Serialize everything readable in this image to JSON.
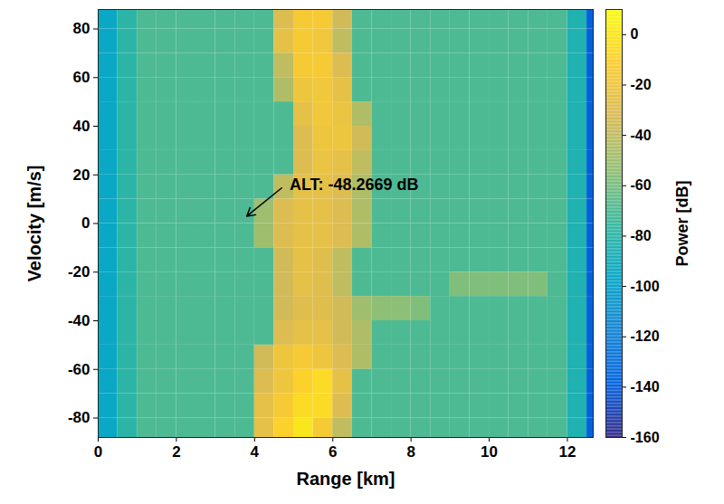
{
  "chart_data": {
    "type": "heatmap",
    "xlabel": "Range [km]",
    "ylabel": "Velocity [m/s]",
    "xlim": [
      0,
      12.66
    ],
    "ylim": [
      -88,
      88
    ],
    "xticks": [
      0,
      2,
      4,
      6,
      8,
      10,
      12
    ],
    "yticks": [
      -80,
      -60,
      -40,
      -20,
      0,
      20,
      40,
      60,
      80
    ],
    "cells": {
      "x": [
        0.25,
        0.75,
        1.25,
        1.75,
        2.25,
        2.75,
        3.25,
        3.75,
        4.25,
        4.75,
        5.25,
        5.75,
        6.25,
        6.75,
        7.25,
        7.75,
        8.25,
        8.75,
        9.25,
        9.75,
        10.25,
        10.75,
        11.25,
        11.75,
        12.25,
        12.75
      ],
      "y": [
        85,
        75,
        65,
        55,
        45,
        35,
        25,
        15,
        5,
        -5,
        -15,
        -25,
        -35,
        -45,
        -55,
        -65,
        -75,
        -85
      ],
      "values": [
        [
          -95,
          -80,
          -70,
          -70,
          -70,
          -70,
          -70,
          -70,
          -70,
          -30,
          -15,
          -15,
          -35,
          -70,
          -70,
          -70,
          -70,
          -70,
          -70,
          -70,
          -70,
          -70,
          -70,
          -70,
          -85,
          -140
        ],
        [
          -95,
          -80,
          -70,
          -70,
          -70,
          -70,
          -70,
          -70,
          -70,
          -25,
          -15,
          -18,
          -40,
          -70,
          -70,
          -70,
          -70,
          -70,
          -70,
          -70,
          -70,
          -70,
          -70,
          -70,
          -85,
          -140
        ],
        [
          -95,
          -80,
          -70,
          -70,
          -70,
          -70,
          -70,
          -70,
          -70,
          -40,
          -15,
          -15,
          -30,
          -70,
          -70,
          -70,
          -70,
          -70,
          -70,
          -70,
          -70,
          -70,
          -70,
          -70,
          -85,
          -140
        ],
        [
          -95,
          -80,
          -70,
          -70,
          -70,
          -70,
          -70,
          -70,
          -70,
          -45,
          -20,
          -18,
          -25,
          -70,
          -70,
          -70,
          -70,
          -70,
          -70,
          -70,
          -70,
          -70,
          -70,
          -70,
          -85,
          -140
        ],
        [
          -95,
          -80,
          -70,
          -70,
          -70,
          -70,
          -70,
          -70,
          -70,
          -70,
          -25,
          -18,
          -22,
          -45,
          -70,
          -70,
          -70,
          -70,
          -70,
          -70,
          -70,
          -70,
          -70,
          -70,
          -85,
          -140
        ],
        [
          -95,
          -80,
          -70,
          -70,
          -70,
          -70,
          -70,
          -70,
          -70,
          -70,
          -30,
          -20,
          -20,
          -35,
          -70,
          -70,
          -70,
          -70,
          -70,
          -70,
          -70,
          -70,
          -70,
          -70,
          -85,
          -140
        ],
        [
          -95,
          -80,
          -70,
          -70,
          -70,
          -70,
          -70,
          -70,
          -70,
          -70,
          -30,
          -22,
          -25,
          -40,
          -70,
          -70,
          -70,
          -70,
          -70,
          -70,
          -70,
          -70,
          -70,
          -70,
          -85,
          -140
        ],
        [
          -95,
          -80,
          -70,
          -70,
          -70,
          -70,
          -70,
          -70,
          -70,
          -40,
          -25,
          -25,
          -30,
          -45,
          -70,
          -70,
          -70,
          -70,
          -70,
          -70,
          -70,
          -70,
          -70,
          -70,
          -85,
          -140
        ],
        [
          -95,
          -80,
          -70,
          -70,
          -70,
          -70,
          -70,
          -70,
          -50,
          -30,
          -25,
          -25,
          -30,
          -45,
          -70,
          -70,
          -70,
          -70,
          -70,
          -70,
          -70,
          -70,
          -70,
          -70,
          -85,
          -140
        ],
        [
          -95,
          -80,
          -70,
          -70,
          -70,
          -70,
          -70,
          -70,
          -50,
          -30,
          -25,
          -25,
          -30,
          -45,
          -70,
          -70,
          -70,
          -70,
          -70,
          -70,
          -70,
          -70,
          -70,
          -70,
          -85,
          -140
        ],
        [
          -95,
          -80,
          -70,
          -70,
          -70,
          -70,
          -70,
          -70,
          -70,
          -35,
          -25,
          -28,
          -40,
          -70,
          -70,
          -70,
          -70,
          -70,
          -70,
          -70,
          -70,
          -70,
          -70,
          -70,
          -85,
          -140
        ],
        [
          -95,
          -80,
          -70,
          -70,
          -70,
          -70,
          -70,
          -70,
          -70,
          -35,
          -25,
          -28,
          -40,
          -70,
          -70,
          -70,
          -70,
          -70,
          -58,
          -58,
          -58,
          -58,
          -58,
          -70,
          -85,
          -140
        ],
        [
          -95,
          -80,
          -70,
          -70,
          -70,
          -70,
          -70,
          -70,
          -70,
          -35,
          -28,
          -28,
          -35,
          -50,
          -55,
          -55,
          -58,
          -70,
          -70,
          -70,
          -70,
          -70,
          -70,
          -70,
          -85,
          -140
        ],
        [
          -95,
          -80,
          -70,
          -70,
          -70,
          -70,
          -70,
          -70,
          -70,
          -30,
          -25,
          -25,
          -35,
          -45,
          -70,
          -70,
          -70,
          -70,
          -70,
          -70,
          -70,
          -70,
          -70,
          -70,
          -85,
          -140
        ],
        [
          -95,
          -80,
          -70,
          -70,
          -70,
          -70,
          -70,
          -70,
          -35,
          -20,
          -15,
          -20,
          -30,
          -45,
          -70,
          -70,
          -70,
          -70,
          -70,
          -70,
          -70,
          -70,
          -70,
          -70,
          -85,
          -140
        ],
        [
          -95,
          -80,
          -70,
          -70,
          -70,
          -70,
          -70,
          -70,
          -30,
          -20,
          -10,
          -5,
          -25,
          -70,
          -70,
          -70,
          -70,
          -70,
          -70,
          -70,
          -70,
          -70,
          -70,
          -70,
          -85,
          -140
        ],
        [
          -95,
          -80,
          -70,
          -70,
          -70,
          -70,
          -70,
          -70,
          -25,
          -15,
          -5,
          -5,
          -30,
          -70,
          -70,
          -70,
          -70,
          -70,
          -70,
          -70,
          -70,
          -70,
          -70,
          -70,
          -85,
          -140
        ],
        [
          -95,
          -80,
          -70,
          -70,
          -70,
          -70,
          -70,
          -70,
          -25,
          -10,
          0,
          -15,
          -40,
          -70,
          -70,
          -70,
          -70,
          -70,
          -70,
          -70,
          -70,
          -70,
          -70,
          -70,
          -85,
          -140
        ]
      ]
    },
    "colorbar": {
      "label": "Power [dB]",
      "range": [
        -160,
        10
      ],
      "ticks": [
        -160,
        -140,
        -120,
        -100,
        -80,
        -60,
        -40,
        -20,
        0
      ]
    },
    "annotations": [
      {
        "text": "ALT: -48.2669 dB",
        "x": 3.8,
        "y": 3,
        "text_x": 4.8,
        "text_y": 16
      }
    ]
  }
}
